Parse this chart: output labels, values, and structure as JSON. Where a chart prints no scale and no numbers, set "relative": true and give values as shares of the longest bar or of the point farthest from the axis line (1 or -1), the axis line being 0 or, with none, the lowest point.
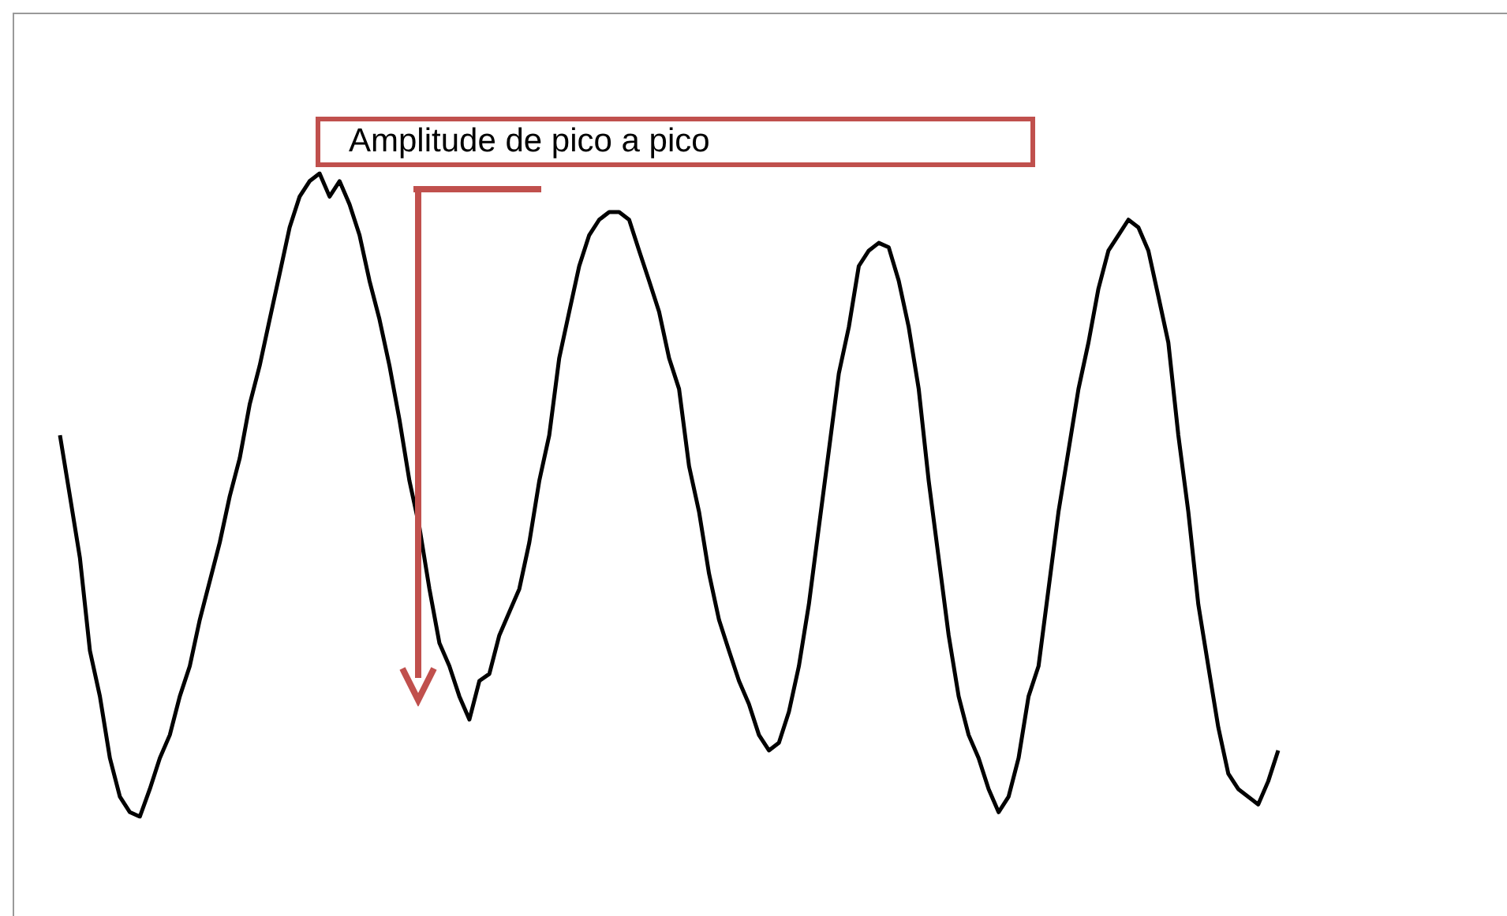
{
  "chart_data": {
    "type": "line",
    "relative": true,
    "annotations": [
      "Amplitude de pico a pico"
    ],
    "categories": [
      null,
      null,
      null,
      null,
      null,
      null,
      null,
      null,
      null,
      null,
      null,
      null,
      null,
      null,
      null,
      null,
      null,
      null,
      null,
      null,
      null,
      null,
      null,
      null,
      null,
      null,
      null,
      null,
      null,
      null,
      null,
      null,
      null,
      null,
      null,
      null,
      null,
      null,
      null,
      null,
      null,
      null,
      null,
      null,
      null,
      null,
      null,
      null,
      null,
      null,
      null,
      null,
      null,
      null,
      null,
      null,
      null,
      null,
      null,
      null,
      null,
      null,
      null,
      null,
      null,
      null,
      null,
      null,
      null,
      null,
      null,
      null,
      null,
      null,
      null,
      null,
      null,
      null,
      null,
      null,
      null,
      null,
      null,
      null,
      null,
      null,
      null,
      null,
      null,
      null,
      null,
      null,
      null,
      null,
      null,
      null,
      null,
      null,
      null,
      null,
      null,
      null,
      null,
      null,
      null,
      null,
      null,
      null,
      null,
      null,
      null,
      null,
      null,
      null,
      null,
      null,
      null,
      null,
      null,
      null,
      null,
      null,
      null
    ],
    "series": [
      {
        "color": "#000000",
        "values": [
          0.593,
          0.498,
          0.402,
          0.258,
          0.187,
          0.091,
          0.031,
          0.007,
          0,
          0.043,
          0.091,
          0.127,
          0.187,
          0.234,
          0.306,
          0.366,
          0.426,
          0.498,
          0.557,
          0.641,
          0.701,
          0.773,
          0.844,
          0.916,
          0.964,
          0.988,
          1,
          0.964,
          0.988,
          0.952,
          0.904,
          0.833,
          0.773,
          0.701,
          0.617,
          0.522,
          0.45,
          0.354,
          0.27,
          0.234,
          0.187,
          0.151,
          0.211,
          0.222,
          0.282,
          0.318,
          0.354,
          0.426,
          0.522,
          0.593,
          0.713,
          0.785,
          0.856,
          0.904,
          0.928,
          0.94,
          0.94,
          0.928,
          0.88,
          0.833,
          0.785,
          0.713,
          0.665,
          0.545,
          0.474,
          0.378,
          0.306,
          0.258,
          0.211,
          0.175,
          0.127,
          0.103,
          0.115,
          0.163,
          0.234,
          0.33,
          0.45,
          0.569,
          0.689,
          0.761,
          0.856,
          0.88,
          0.892,
          0.885,
          0.833,
          0.761,
          0.665,
          0.522,
          0.402,
          0.282,
          0.187,
          0.127,
          0.091,
          0.043,
          0.007,
          0.031,
          0.091,
          0.187,
          0.234,
          0.354,
          0.474,
          0.569,
          0.665,
          0.737,
          0.821,
          0.88,
          0.904,
          0.928,
          0.916,
          0.88,
          0.809,
          0.737,
          0.593,
          0.474,
          0.33,
          0.234,
          0.139,
          0.067,
          0.043,
          0.031,
          0.019,
          0.055,
          0.103
        ]
      }
    ]
  }
}
